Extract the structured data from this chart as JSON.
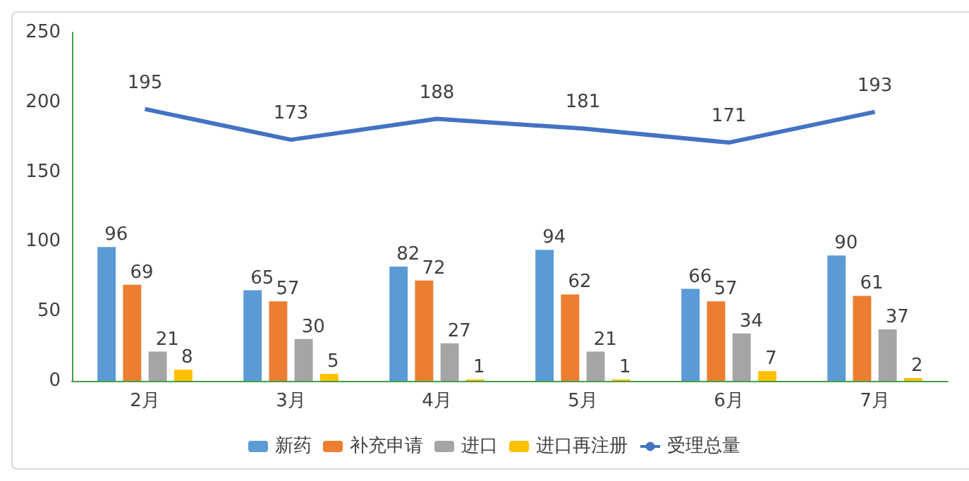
{
  "chart_data": {
    "type": "bar",
    "categories": [
      "2月",
      "3月",
      "4月",
      "5月",
      "6月",
      "7月"
    ],
    "series": [
      {
        "name": "新药",
        "color": "#5b9bd5",
        "values": [
          96,
          65,
          82,
          94,
          66,
          90
        ]
      },
      {
        "name": "补充申请",
        "color": "#ed7d31",
        "values": [
          69,
          57,
          72,
          62,
          57,
          61
        ]
      },
      {
        "name": "进口",
        "color": "#a5a5a5",
        "values": [
          21,
          30,
          27,
          21,
          34,
          37
        ]
      },
      {
        "name": "进口再注册",
        "color": "#ffc000",
        "values": [
          8,
          5,
          1,
          1,
          7,
          2
        ]
      },
      {
        "name": "受理总量",
        "type": "line",
        "color": "#4472c4",
        "values": [
          195,
          173,
          188,
          181,
          171,
          193
        ],
        "marker": "none"
      }
    ],
    "ylim": [
      0,
      250
    ],
    "yticks": [
      0,
      50,
      100,
      150,
      200,
      250
    ],
    "grid": false,
    "legend": "bottom",
    "data_labels": true
  }
}
